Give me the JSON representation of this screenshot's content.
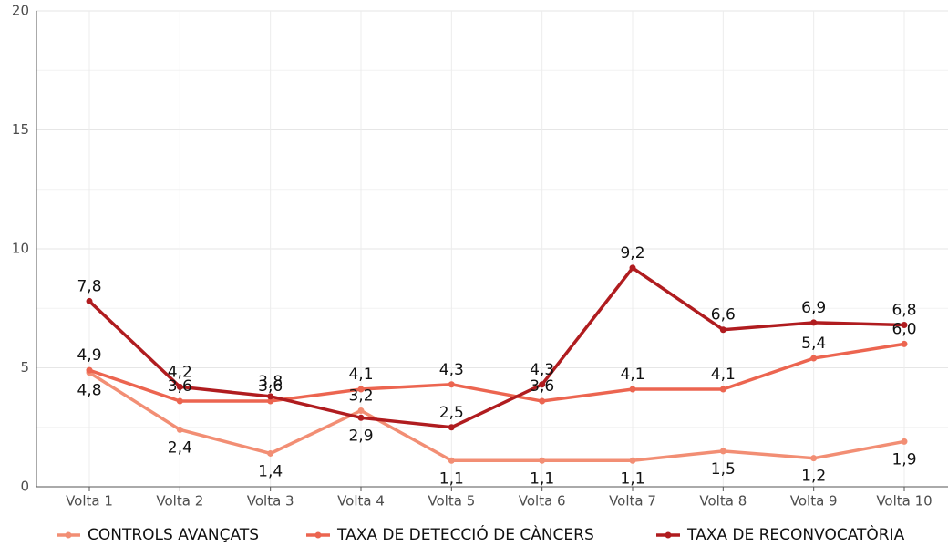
{
  "chart_data": {
    "type": "line",
    "categories": [
      "Volta 1",
      "Volta 2",
      "Volta 3",
      "Volta 4",
      "Volta 5",
      "Volta 6",
      "Volta 7",
      "Volta 8",
      "Volta 9",
      "Volta 10"
    ],
    "series": [
      {
        "name": "CONTROLS AVANÇATS",
        "color": "#f28e74",
        "values": [
          4.8,
          2.4,
          1.4,
          3.2,
          1.1,
          1.1,
          1.1,
          1.5,
          1.2,
          1.9
        ],
        "value_labels": [
          "4,8",
          "2,4",
          "1,4",
          "3,2",
          "1,1",
          "1,1",
          "1,1",
          "1,5",
          "1,2",
          "1,9"
        ]
      },
      {
        "name": "TAXA DE DETECCIÓ DE CÀNCERS",
        "color": "#ec6550",
        "values": [
          4.9,
          3.6,
          3.6,
          4.1,
          4.3,
          3.6,
          4.1,
          4.1,
          5.4,
          6.0
        ],
        "value_labels": [
          "4,9",
          "3,6",
          "3,6",
          "4,1",
          "4,3",
          "3,6",
          "4,1",
          "4,1",
          "5,4",
          "6,0"
        ]
      },
      {
        "name": "TAXA DE RECONVOCATÒRIA",
        "color": "#b01c1f",
        "values": [
          7.8,
          4.2,
          3.8,
          2.9,
          2.5,
          4.3,
          9.2,
          6.6,
          6.9,
          6.8
        ],
        "value_labels": [
          "7,8",
          "4,2",
          "3,8",
          "2,9",
          "2,5",
          "4,3",
          "9,2",
          "6,6",
          "6,9",
          "6,8"
        ]
      }
    ],
    "ylim": [
      0,
      20
    ],
    "yticks": [
      0,
      5,
      10,
      15,
      20
    ],
    "grid": true,
    "legend": "bottom"
  }
}
